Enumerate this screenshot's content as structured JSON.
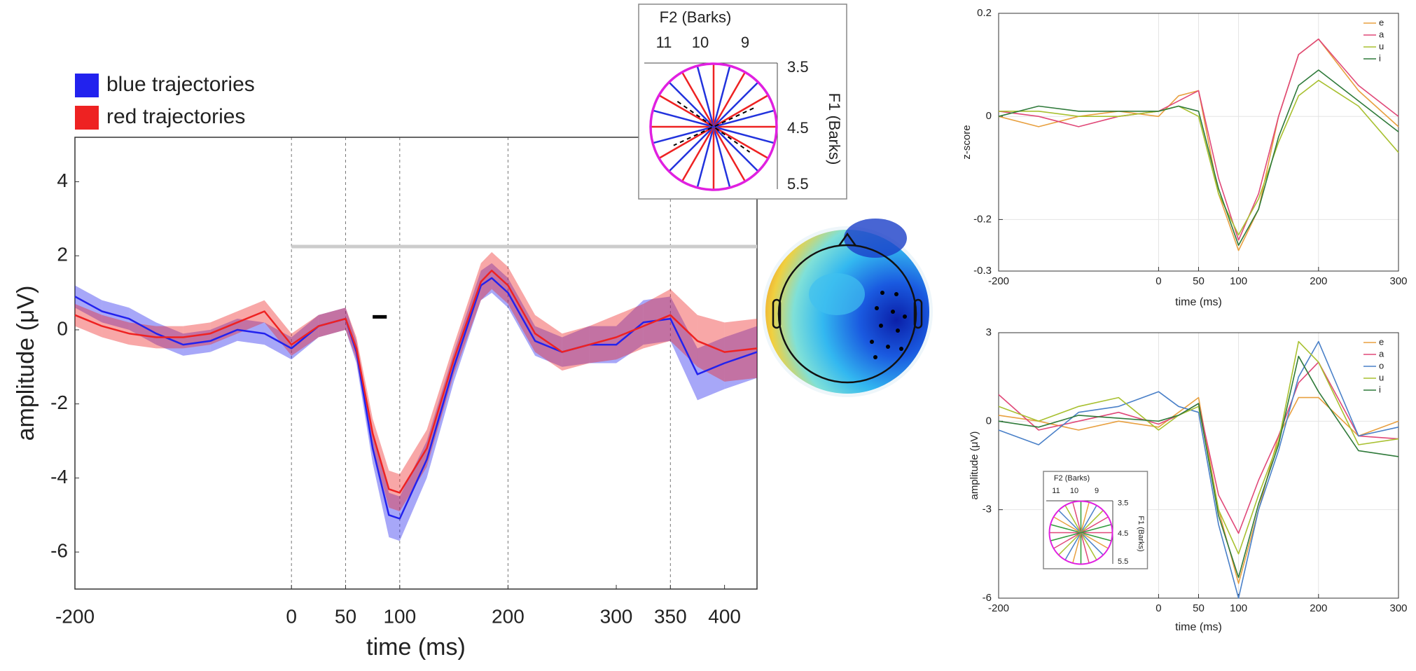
{
  "chart_data": [
    {
      "type": "line",
      "xlabel": "time (ms)",
      "ylabel": "amplitude (μV)",
      "x": [
        -200,
        -175,
        -150,
        -125,
        -100,
        -75,
        -50,
        -25,
        0,
        25,
        50,
        60,
        75,
        90,
        100,
        125,
        150,
        175,
        185,
        200,
        225,
        250,
        275,
        300,
        325,
        350,
        375,
        400,
        430
      ],
      "series": [
        {
          "name": "blue trajectories",
          "color": "#2222ee",
          "values": [
            0.9,
            0.5,
            0.3,
            -0.1,
            -0.4,
            -0.3,
            0,
            -0.1,
            -0.5,
            0.1,
            0.3,
            -0.6,
            -3.2,
            -5.0,
            -5.1,
            -3.5,
            -1.0,
            1.2,
            1.4,
            1.0,
            -0.3,
            -0.6,
            -0.4,
            -0.4,
            0.2,
            0.3,
            -1.2,
            -0.9,
            -0.6
          ],
          "errors": [
            0.3,
            0.3,
            0.3,
            0.3,
            0.3,
            0.3,
            0.3,
            0.3,
            0.3,
            0.3,
            0.3,
            0.3,
            0.4,
            0.6,
            0.6,
            0.5,
            0.4,
            0.4,
            0.4,
            0.4,
            0.4,
            0.4,
            0.5,
            0.5,
            0.6,
            0.6,
            0.7,
            0.7,
            0.7
          ]
        },
        {
          "name": "red trajectories",
          "color": "#ee2222",
          "values": [
            0.4,
            0.1,
            -0.1,
            -0.2,
            -0.2,
            -0.1,
            0.2,
            0.5,
            -0.4,
            0.1,
            0.3,
            -0.5,
            -2.8,
            -4.3,
            -4.4,
            -3.2,
            -0.8,
            1.3,
            1.6,
            1.2,
            -0.1,
            -0.6,
            -0.4,
            -0.2,
            0.1,
            0.4,
            -0.3,
            -0.6,
            -0.5
          ],
          "errors": [
            0.3,
            0.3,
            0.3,
            0.3,
            0.3,
            0.3,
            0.3,
            0.3,
            0.3,
            0.3,
            0.3,
            0.3,
            0.4,
            0.5,
            0.5,
            0.5,
            0.4,
            0.5,
            0.5,
            0.5,
            0.5,
            0.5,
            0.5,
            0.6,
            0.6,
            0.7,
            0.7,
            0.8,
            0.8
          ]
        }
      ],
      "xlim": [
        -200,
        430
      ],
      "ylim": [
        -7,
        5.2
      ],
      "xticks": [
        -200,
        0,
        50,
        100,
        200,
        300,
        350,
        400
      ],
      "yticks": [
        -6,
        -4,
        -2,
        0,
        2,
        4
      ],
      "vlines": [
        0,
        50,
        100,
        200,
        350
      ],
      "sig_bars": [
        {
          "x": [
            0,
            430
          ],
          "y": 2.25,
          "color": "#cccccc"
        },
        {
          "x": [
            75,
            88
          ],
          "y": 0.35,
          "color": "#000000"
        }
      ],
      "grid": false,
      "legend": "top-left"
    },
    {
      "type": "line",
      "xlabel": "time (ms)",
      "ylabel": "z-score",
      "x": [
        -200,
        -150,
        -100,
        -50,
        0,
        25,
        50,
        75,
        100,
        125,
        150,
        175,
        200,
        250,
        300
      ],
      "series": [
        {
          "name": "e",
          "color": "#e8a040",
          "values": [
            0,
            -0.02,
            0,
            0.01,
            0,
            0.04,
            0.05,
            -0.15,
            -0.26,
            -0.18,
            0.0,
            0.12,
            0.15,
            0.05,
            -0.02
          ]
        },
        {
          "name": "a",
          "color": "#e04878",
          "values": [
            0.01,
            0,
            -0.02,
            0,
            0.01,
            0.03,
            0.05,
            -0.12,
            -0.24,
            -0.15,
            0.0,
            0.12,
            0.15,
            0.06,
            0.0
          ]
        },
        {
          "name": "u",
          "color": "#a8c030",
          "values": [
            0.01,
            0.01,
            0,
            0,
            0.01,
            0.02,
            0.0,
            -0.15,
            -0.23,
            -0.16,
            -0.05,
            0.04,
            0.07,
            0.02,
            -0.07
          ]
        },
        {
          "name": "i",
          "color": "#2f7a3a",
          "values": [
            0,
            0.02,
            0.01,
            0.01,
            0.01,
            0.02,
            0.01,
            -0.14,
            -0.25,
            -0.18,
            -0.04,
            0.06,
            0.09,
            0.03,
            -0.03
          ]
        }
      ],
      "xlim": [
        -200,
        300
      ],
      "ylim": [
        -0.3,
        0.2
      ],
      "xticks": [
        -200,
        0,
        50,
        100,
        200,
        300
      ],
      "yticks": [
        -0.3,
        -0.2,
        0,
        0.2
      ],
      "grid": true,
      "legend": "top-right"
    },
    {
      "type": "line",
      "xlabel": "time (ms)",
      "ylabel": "amplitude (μV)",
      "x": [
        -200,
        -150,
        -100,
        -50,
        0,
        25,
        50,
        75,
        100,
        125,
        150,
        175,
        200,
        250,
        300
      ],
      "series": [
        {
          "name": "e",
          "color": "#e8a040",
          "values": [
            0.2,
            0,
            -0.3,
            0,
            -0.2,
            0.3,
            0.8,
            -3,
            -5.5,
            -3,
            -0.5,
            0.8,
            0.8,
            -0.5,
            0
          ]
        },
        {
          "name": "a",
          "color": "#e04878",
          "values": [
            0.9,
            -0.3,
            0,
            0.3,
            -0.1,
            0.2,
            0.6,
            -2.5,
            -3.8,
            -2,
            -0.5,
            1.3,
            2,
            -0.5,
            -0.6
          ]
        },
        {
          "name": "o",
          "color": "#4a80c8",
          "values": [
            -0.3,
            -0.8,
            0.3,
            0.5,
            1,
            0.5,
            0.3,
            -3.5,
            -6,
            -3,
            -1,
            1.5,
            2.7,
            -0.5,
            -0.2
          ]
        },
        {
          "name": "u",
          "color": "#a8c030",
          "values": [
            0.5,
            0,
            0.5,
            0.8,
            -0.3,
            0.2,
            0.5,
            -3,
            -4.5,
            -2.5,
            -0.7,
            2.7,
            2,
            -0.8,
            -0.6
          ]
        },
        {
          "name": "i",
          "color": "#2f7a3a",
          "values": [
            0,
            -0.2,
            0.2,
            0.1,
            0,
            0.2,
            0.6,
            -3.2,
            -5.3,
            -2.8,
            -0.8,
            2.2,
            1,
            -1,
            -1.2
          ]
        }
      ],
      "xlim": [
        -200,
        300
      ],
      "ylim": [
        -6,
        3
      ],
      "xticks": [
        -200,
        0,
        50,
        100,
        200,
        300
      ],
      "yticks": [
        -6,
        -3,
        0,
        3
      ],
      "grid": true,
      "legend": "top-right"
    }
  ],
  "insets": [
    {
      "title": "F2 (Barks)",
      "xticks": [
        11,
        10,
        9
      ],
      "yticks": [
        3.5,
        4.5,
        5.5
      ],
      "ylabel": "F1 (Barks)"
    },
    {
      "title": "F2 (Barks)",
      "xticks": [
        11,
        10,
        9
      ],
      "yticks": [
        3.5,
        4.5,
        5.5
      ],
      "ylabel": "F1 (Barks)"
    }
  ]
}
